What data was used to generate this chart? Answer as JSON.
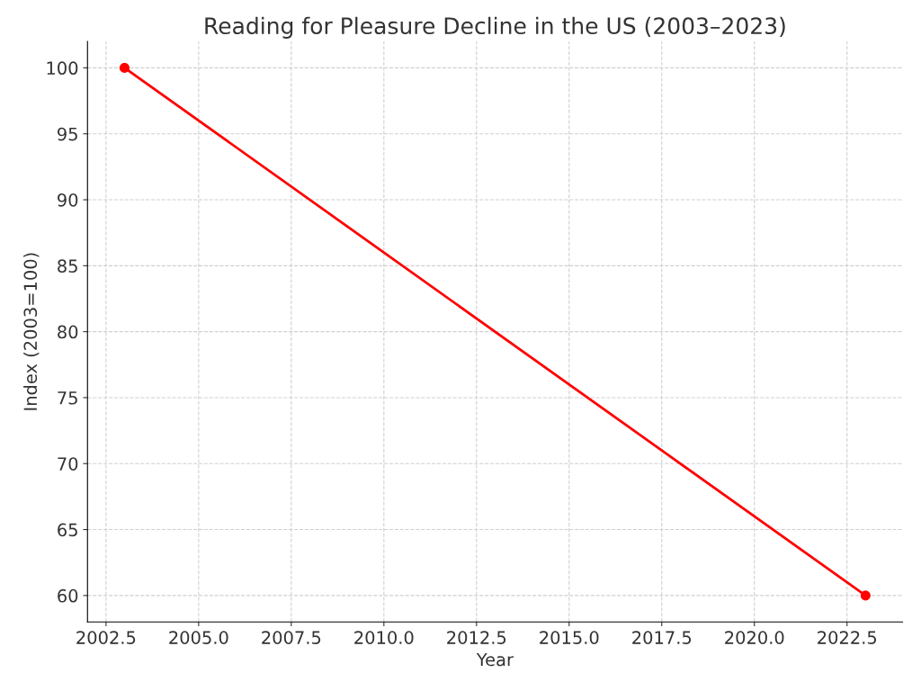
{
  "chart_data": {
    "type": "line",
    "title": "Reading for Pleasure Decline in the US (2003–2023)",
    "xlabel": "Year",
    "ylabel": "Index (2003=100)",
    "x": [
      2003,
      2023
    ],
    "series": [
      {
        "color": "#ff0000",
        "values": [
          100,
          60
        ]
      }
    ],
    "xlim": [
      2002,
      2024
    ],
    "ylim": [
      58,
      102
    ],
    "xticks": [
      2002.5,
      {
        "value": 2005,
        "label": "2005.0"
      },
      2007.5,
      {
        "value": 2010,
        "label": "2010.0"
      },
      2012.5,
      {
        "value": 2015,
        "label": "2015.0"
      },
      2017.5,
      {
        "value": 2020,
        "label": "2020.0"
      },
      2022.5
    ],
    "yticks": [
      60,
      65,
      70,
      75,
      80,
      85,
      90,
      95,
      100
    ],
    "grid": true,
    "marker": "circle",
    "line_style": "solid"
  }
}
